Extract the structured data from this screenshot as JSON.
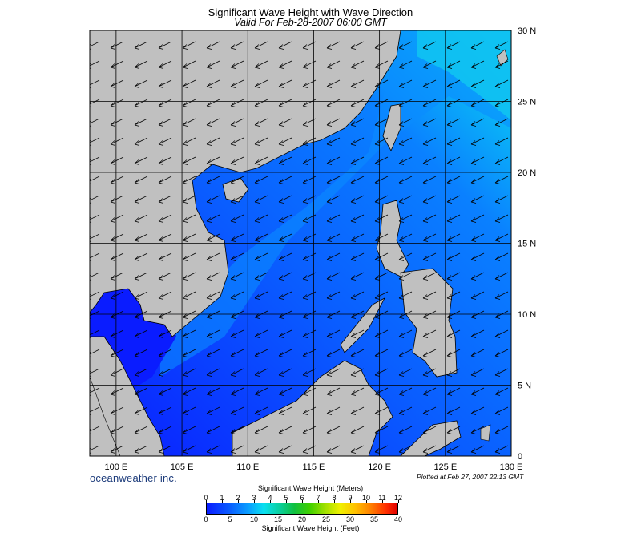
{
  "header": {
    "title": "Significant Wave Height with Wave Direction",
    "subtitle": "Valid For Feb-28-2007 06:00 GMT"
  },
  "map": {
    "lon_labels": [
      "100 E",
      "105 E",
      "110 E",
      "115 E",
      "120 E",
      "125 E",
      "130 E"
    ],
    "lat_labels": [
      "30 N",
      "25 N",
      "20 N",
      "15 N",
      "10 N",
      "5 N",
      "0"
    ],
    "lon_range": [
      98,
      130
    ],
    "lat_range": [
      0,
      30
    ],
    "land_color": "#c0c0c0",
    "sea_colors": [
      "#0a1cff",
      "#0a5dff",
      "#0aa0ff",
      "#0ae0f0"
    ],
    "wave_direction": "from north-east (NE monsoon)"
  },
  "footer": {
    "brand": "oceanweather inc.",
    "plotted": "Plotted at Feb 27, 2007 22:13 GMT"
  },
  "colorbar": {
    "title_top": "Significant Wave Height (Meters)",
    "title_bottom": "Significant Wave Height (Feet)",
    "meters": [
      "0",
      "1",
      "2",
      "3",
      "4",
      "5",
      "6",
      "7",
      "8",
      "9",
      "10",
      "11",
      "12"
    ],
    "feet": [
      "0",
      "5",
      "10",
      "15",
      "20",
      "25",
      "30",
      "35",
      "40"
    ]
  }
}
